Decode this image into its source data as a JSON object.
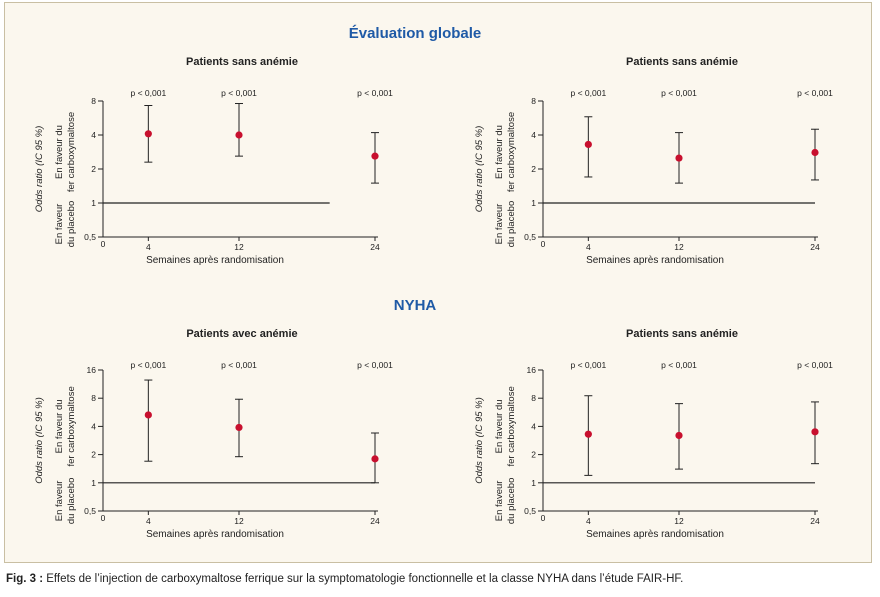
{
  "figure": {
    "section_titles": [
      "Évaluation globale",
      "NYHA"
    ],
    "caption_label": "Fig. 3 :",
    "caption_text": "Effets de l’injection de carboxymaltose ferrique sur la symptomatologie fonctionnelle et la classe NYHA dans l’étude FAIR-HF."
  },
  "colors": {
    "point": "#c8102e",
    "section_title": "#1f5aa6",
    "frame_background": "#fbf7ee",
    "axis": "#222222"
  },
  "chart_data": [
    {
      "type": "scatter",
      "section": "Évaluation globale",
      "title": "Patients sans anémie",
      "xlabel": "Semaines après randomisation",
      "ylabel": "Odds ratio (IC 95 %)",
      "ylabel_favor_top": [
        "En faveur du",
        "fer carboxymaltose"
      ],
      "ylabel_favor_bottom": [
        "En faveur",
        "du placebo"
      ],
      "scale": "log",
      "yticks": [
        0.5,
        1,
        2,
        4,
        8
      ],
      "ytick_labels": [
        "0,5",
        "1",
        "2",
        "4",
        "8"
      ],
      "x_origin_label": "0",
      "x": [
        4,
        12,
        24
      ],
      "xtick_labels": [
        "4",
        "12",
        "24"
      ],
      "values": [
        4.1,
        4.0,
        2.6
      ],
      "ci_low": [
        2.3,
        2.6,
        1.5
      ],
      "ci_high": [
        7.3,
        7.6,
        4.2
      ],
      "p_labels": [
        "p < 0,001",
        "p < 0,001",
        "p < 0,001"
      ],
      "reference_line": 1
    },
    {
      "type": "scatter",
      "section": "Évaluation globale",
      "title": "Patients sans anémie",
      "xlabel": "Semaines après randomisation",
      "ylabel": "Odds ratio (IC 95 %)",
      "ylabel_favor_top": [
        "En faveur du",
        "fer carboxymaltose"
      ],
      "ylabel_favor_bottom": [
        "En faveur",
        "du placebo"
      ],
      "scale": "log",
      "yticks": [
        0.5,
        1,
        2,
        4,
        8
      ],
      "ytick_labels": [
        "0,5",
        "1",
        "2",
        "4",
        "8"
      ],
      "x_origin_label": "0",
      "x": [
        4,
        12,
        24
      ],
      "xtick_labels": [
        "4",
        "12",
        "24"
      ],
      "values": [
        3.3,
        2.5,
        2.8
      ],
      "ci_low": [
        1.7,
        1.5,
        1.6
      ],
      "ci_high": [
        5.8,
        4.2,
        4.5
      ],
      "p_labels": [
        "p < 0,001",
        "p < 0,001",
        "p < 0,001"
      ],
      "reference_line": 1
    },
    {
      "type": "scatter",
      "section": "NYHA",
      "title": "Patients avec anémie",
      "xlabel": "Semaines après randomisation",
      "ylabel": "Odds ratio (IC 95 %)",
      "ylabel_favor_top": [
        "En faveur du",
        "fer carboxymaltose"
      ],
      "ylabel_favor_bottom": [
        "En faveur",
        "du placebo"
      ],
      "scale": "log",
      "yticks": [
        0.5,
        1,
        2,
        4,
        8,
        16
      ],
      "ytick_labels": [
        "0,5",
        "1",
        "2",
        "4",
        "8",
        "16"
      ],
      "x_origin_label": "0",
      "x": [
        4,
        12,
        24
      ],
      "xtick_labels": [
        "4",
        "12",
        "24"
      ],
      "values": [
        5.3,
        3.9,
        1.8
      ],
      "ci_low": [
        1.7,
        1.9,
        1.0
      ],
      "ci_high": [
        12.5,
        7.8,
        3.4
      ],
      "p_labels": [
        "p < 0,001",
        "p < 0,001",
        "p < 0,001"
      ],
      "reference_line": 1
    },
    {
      "type": "scatter",
      "section": "NYHA",
      "title": "Patients sans anémie",
      "xlabel": "Semaines après randomisation",
      "ylabel": "Odds ratio (IC 95 %)",
      "ylabel_favor_top": [
        "En faveur du",
        "fer carboxymaltose"
      ],
      "ylabel_favor_bottom": [
        "En faveur",
        "du placebo"
      ],
      "scale": "log",
      "yticks": [
        0.5,
        1,
        2,
        4,
        8,
        16
      ],
      "ytick_labels": [
        "0,5",
        "1",
        "2",
        "4",
        "8",
        "16"
      ],
      "x_origin_label": "0",
      "x": [
        4,
        12,
        24
      ],
      "xtick_labels": [
        "4",
        "12",
        "24"
      ],
      "values": [
        3.3,
        3.2,
        3.5
      ],
      "ci_low": [
        1.2,
        1.4,
        1.6
      ],
      "ci_high": [
        8.5,
        7.0,
        7.3
      ],
      "p_labels": [
        "p < 0,001",
        "p < 0,001",
        "p < 0,001"
      ],
      "reference_line": 1
    }
  ]
}
